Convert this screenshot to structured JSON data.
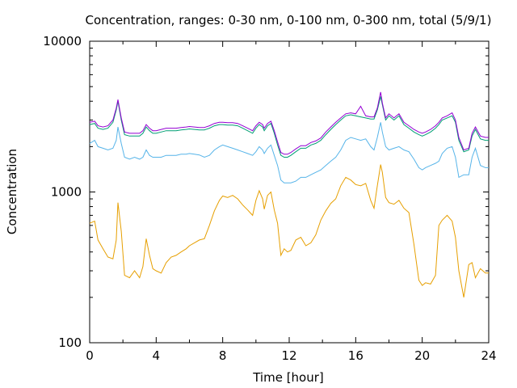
{
  "chart_data": {
    "type": "line",
    "title": "Concentration, ranges: 0-30 nm, 0-100 nm, 0-300 nm, total (5/9/1)",
    "xlabel": "Time [hour]",
    "ylabel": "Concentration",
    "xlim": [
      0,
      24
    ],
    "ylim": [
      100,
      10000
    ],
    "yscale": "log",
    "x_ticks": [
      0,
      4,
      8,
      12,
      16,
      20,
      24
    ],
    "y_ticks": [
      100,
      1000,
      10000
    ],
    "x_tick_labels": [
      "0",
      "4",
      "8",
      "12",
      "16",
      "20",
      "24"
    ],
    "y_tick_labels": [
      "100",
      "1000",
      "10000"
    ],
    "grid": false,
    "legend": "none",
    "series": [
      {
        "color": "#e69f00",
        "x": [
          0,
          0.3,
          0.5,
          0.8,
          1.1,
          1.4,
          1.6,
          1.7,
          1.9,
          2.1,
          2.4,
          2.7,
          3.0,
          3.2,
          3.4,
          3.6,
          3.8,
          4.0,
          4.3,
          4.6,
          4.9,
          5.2,
          5.5,
          5.8,
          6.0,
          6.3,
          6.6,
          6.9,
          7.2,
          7.5,
          7.8,
          8.0,
          8.3,
          8.6,
          8.9,
          9.2,
          9.5,
          9.8,
          10.0,
          10.2,
          10.4,
          10.5,
          10.7,
          10.9,
          11.1,
          11.3,
          11.5,
          11.7,
          11.9,
          12.1,
          12.4,
          12.7,
          13.0,
          13.3,
          13.6,
          13.9,
          14.2,
          14.5,
          14.8,
          15.1,
          15.4,
          15.7,
          16.0,
          16.3,
          16.6,
          16.9,
          17.1,
          17.3,
          17.5,
          17.6,
          17.8,
          18.0,
          18.3,
          18.6,
          18.9,
          19.2,
          19.5,
          19.8,
          20.0,
          20.2,
          20.5,
          20.8,
          21.0,
          21.2,
          21.5,
          21.8,
          22.0,
          22.2,
          22.5,
          22.8,
          23.0,
          23.2,
          23.5,
          23.8,
          24.0
        ],
        "y": [
          620,
          640,
          480,
          420,
          370,
          360,
          480,
          850,
          550,
          280,
          270,
          300,
          270,
          320,
          490,
          380,
          310,
          300,
          290,
          340,
          370,
          380,
          400,
          420,
          440,
          460,
          480,
          490,
          600,
          750,
          880,
          940,
          920,
          950,
          900,
          820,
          760,
          700,
          880,
          1020,
          900,
          770,
          950,
          1000,
          760,
          620,
          380,
          420,
          400,
          410,
          480,
          500,
          440,
          460,
          520,
          650,
          750,
          840,
          900,
          1100,
          1250,
          1200,
          1120,
          1100,
          1140,
          880,
          780,
          1100,
          1520,
          1350,
          920,
          850,
          830,
          880,
          780,
          730,
          450,
          260,
          240,
          250,
          245,
          280,
          600,
          650,
          700,
          640,
          500,
          300,
          200,
          330,
          340,
          270,
          310,
          290,
          290
        ]
      },
      {
        "color": "#56b4e9",
        "x": [
          0,
          0.3,
          0.5,
          0.8,
          1.1,
          1.4,
          1.6,
          1.7,
          1.9,
          2.1,
          2.4,
          2.7,
          3.0,
          3.2,
          3.4,
          3.6,
          3.8,
          4.0,
          4.3,
          4.6,
          4.9,
          5.2,
          5.5,
          5.8,
          6.0,
          6.3,
          6.6,
          6.9,
          7.2,
          7.5,
          7.8,
          8.0,
          8.3,
          8.6,
          8.9,
          9.2,
          9.5,
          9.8,
          10.0,
          10.2,
          10.4,
          10.5,
          10.7,
          10.9,
          11.1,
          11.3,
          11.5,
          11.7,
          11.9,
          12.1,
          12.4,
          12.7,
          13.0,
          13.3,
          13.6,
          13.9,
          14.2,
          14.5,
          14.8,
          15.1,
          15.4,
          15.7,
          16.0,
          16.3,
          16.6,
          16.9,
          17.1,
          17.3,
          17.5,
          17.6,
          17.8,
          18.0,
          18.3,
          18.6,
          18.9,
          19.2,
          19.5,
          19.8,
          20.0,
          20.2,
          20.5,
          20.8,
          21.0,
          21.2,
          21.5,
          21.8,
          22.0,
          22.2,
          22.5,
          22.8,
          23.0,
          23.2,
          23.5,
          23.8,
          24.0
        ],
        "y": [
          2100,
          2200,
          2000,
          1950,
          1900,
          1950,
          2200,
          2700,
          2100,
          1700,
          1650,
          1700,
          1650,
          1700,
          1900,
          1750,
          1700,
          1700,
          1700,
          1750,
          1750,
          1750,
          1780,
          1780,
          1800,
          1780,
          1760,
          1700,
          1750,
          1900,
          2000,
          2050,
          2000,
          1950,
          1900,
          1850,
          1800,
          1750,
          1850,
          2000,
          1900,
          1800,
          1950,
          2050,
          1750,
          1500,
          1200,
          1150,
          1150,
          1150,
          1180,
          1250,
          1250,
          1300,
          1350,
          1400,
          1500,
          1600,
          1700,
          1900,
          2200,
          2300,
          2250,
          2200,
          2250,
          2000,
          1900,
          2300,
          2900,
          2500,
          2000,
          1900,
          1950,
          2000,
          1900,
          1850,
          1650,
          1450,
          1400,
          1450,
          1500,
          1550,
          1600,
          1800,
          1950,
          2000,
          1700,
          1250,
          1300,
          1300,
          1700,
          1950,
          1500,
          1450,
          1450
        ]
      },
      {
        "color": "#009e73",
        "x": [
          0,
          0.3,
          0.5,
          0.8,
          1.1,
          1.4,
          1.6,
          1.7,
          1.9,
          2.1,
          2.4,
          2.7,
          3.0,
          3.2,
          3.4,
          3.6,
          3.8,
          4.0,
          4.3,
          4.6,
          4.9,
          5.2,
          5.5,
          5.8,
          6.0,
          6.3,
          6.6,
          6.9,
          7.2,
          7.5,
          7.8,
          8.0,
          8.3,
          8.6,
          8.9,
          9.2,
          9.5,
          9.8,
          10.0,
          10.2,
          10.4,
          10.5,
          10.7,
          10.9,
          11.1,
          11.3,
          11.5,
          11.7,
          11.9,
          12.1,
          12.4,
          12.7,
          13.0,
          13.3,
          13.6,
          13.9,
          14.2,
          14.5,
          14.8,
          15.1,
          15.4,
          15.7,
          16.0,
          16.3,
          16.6,
          16.9,
          17.1,
          17.3,
          17.5,
          17.6,
          17.8,
          18.0,
          18.3,
          18.6,
          18.9,
          19.2,
          19.5,
          19.8,
          20.0,
          20.2,
          20.5,
          20.8,
          21.0,
          21.2,
          21.5,
          21.8,
          22.0,
          22.2,
          22.5,
          22.8,
          23.0,
          23.2,
          23.5,
          23.8,
          24.0
        ],
        "y": [
          2800,
          2850,
          2650,
          2600,
          2650,
          2900,
          3500,
          4000,
          3000,
          2400,
          2350,
          2350,
          2350,
          2450,
          2700,
          2550,
          2450,
          2450,
          2500,
          2550,
          2550,
          2550,
          2580,
          2600,
          2620,
          2600,
          2580,
          2580,
          2650,
          2750,
          2800,
          2800,
          2780,
          2780,
          2750,
          2650,
          2550,
          2450,
          2650,
          2800,
          2700,
          2550,
          2750,
          2850,
          2450,
          2050,
          1750,
          1700,
          1700,
          1750,
          1850,
          1950,
          1950,
          2050,
          2100,
          2200,
          2400,
          2600,
          2800,
          3000,
          3200,
          3250,
          3200,
          3150,
          3100,
          3050,
          3050,
          3500,
          4300,
          3800,
          3000,
          3200,
          3000,
          3200,
          2800,
          2650,
          2500,
          2400,
          2350,
          2400,
          2500,
          2650,
          2800,
          3000,
          3100,
          3200,
          2900,
          2200,
          1850,
          1900,
          2350,
          2600,
          2250,
          2200,
          2200
        ]
      },
      {
        "color": "#9400d3",
        "x": [
          0,
          0.3,
          0.5,
          0.8,
          1.1,
          1.4,
          1.6,
          1.7,
          1.9,
          2.1,
          2.4,
          2.7,
          3.0,
          3.2,
          3.4,
          3.6,
          3.8,
          4.0,
          4.3,
          4.6,
          4.9,
          5.2,
          5.5,
          5.8,
          6.0,
          6.3,
          6.6,
          6.9,
          7.2,
          7.5,
          7.8,
          8.0,
          8.3,
          8.6,
          8.9,
          9.2,
          9.5,
          9.8,
          10.0,
          10.2,
          10.4,
          10.5,
          10.7,
          10.9,
          11.1,
          11.3,
          11.5,
          11.7,
          11.9,
          12.1,
          12.4,
          12.7,
          13.0,
          13.3,
          13.6,
          13.9,
          14.2,
          14.5,
          14.8,
          15.1,
          15.4,
          15.7,
          16.0,
          16.3,
          16.6,
          16.9,
          17.1,
          17.3,
          17.5,
          17.6,
          17.8,
          18.0,
          18.3,
          18.6,
          18.9,
          19.2,
          19.5,
          19.8,
          20.0,
          20.2,
          20.5,
          20.8,
          21.0,
          21.2,
          21.5,
          21.8,
          22.0,
          22.2,
          22.5,
          22.8,
          23.0,
          23.2,
          23.5,
          23.8,
          24.0
        ],
        "y": [
          2900,
          2950,
          2750,
          2700,
          2750,
          3000,
          3600,
          4100,
          3100,
          2500,
          2450,
          2450,
          2450,
          2550,
          2800,
          2650,
          2550,
          2550,
          2600,
          2650,
          2650,
          2650,
          2680,
          2700,
          2720,
          2700,
          2680,
          2680,
          2750,
          2850,
          2900,
          2900,
          2880,
          2880,
          2850,
          2750,
          2650,
          2550,
          2750,
          2900,
          2800,
          2650,
          2850,
          2950,
          2550,
          2150,
          1830,
          1780,
          1780,
          1830,
          1930,
          2030,
          2030,
          2130,
          2180,
          2280,
          2500,
          2700,
          2900,
          3100,
          3300,
          3350,
          3300,
          3700,
          3200,
          3150,
          3150,
          3600,
          4600,
          3900,
          3100,
          3300,
          3100,
          3300,
          2900,
          2750,
          2600,
          2500,
          2450,
          2500,
          2600,
          2750,
          2900,
          3100,
          3200,
          3350,
          3000,
          2300,
          1900,
          1950,
          2450,
          2700,
          2350,
          2300,
          2300
        ]
      }
    ]
  }
}
